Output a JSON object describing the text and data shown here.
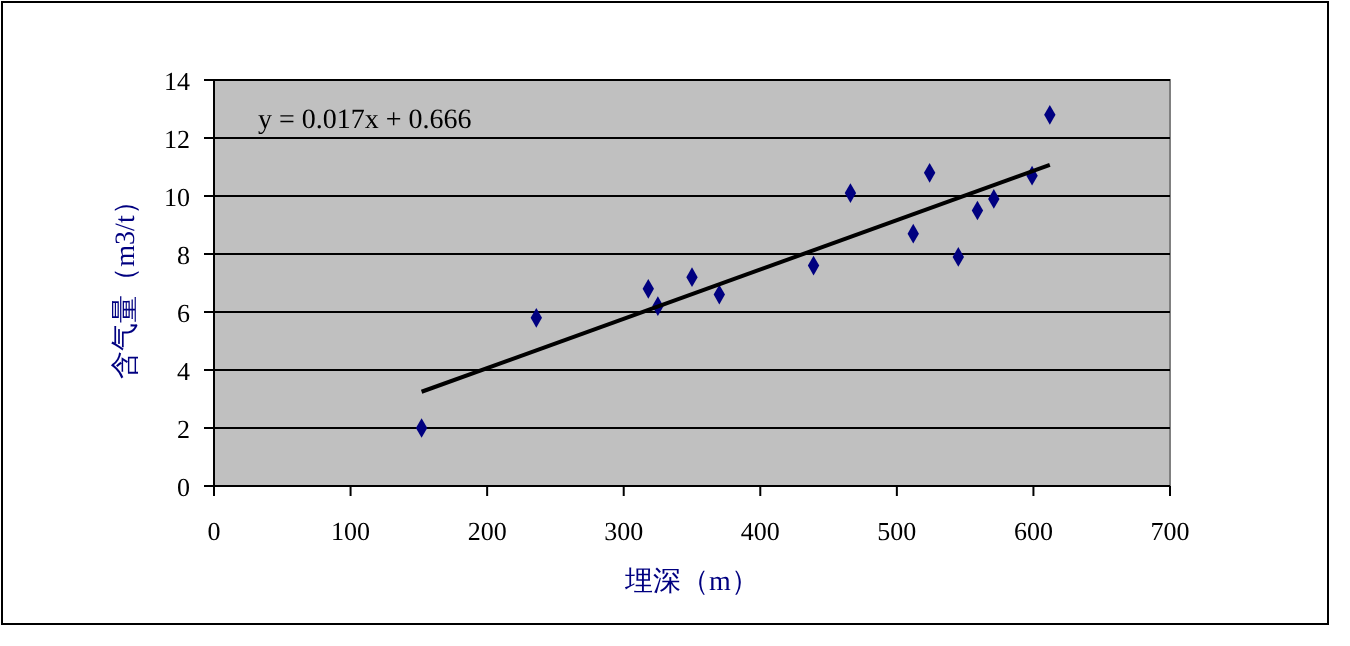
{
  "chart_data": {
    "type": "scatter",
    "xlabel": "埋深（m）",
    "ylabel": "含气量（m3/t）",
    "xlim": [
      0,
      700
    ],
    "xticks": [
      0,
      100,
      200,
      300,
      400,
      500,
      600,
      700
    ],
    "ylim": [
      0,
      14
    ],
    "yticks": [
      0,
      2,
      4,
      6,
      8,
      10,
      12,
      14
    ],
    "grid": "y",
    "marker": "diamond",
    "annotations": [
      "y = 0.017x + 0.666"
    ],
    "series": [
      {
        "color": "#000080",
        "x": [
          152,
          236,
          318,
          325,
          350,
          370,
          439,
          466,
          512,
          524,
          545,
          559,
          571,
          599,
          612
        ],
        "values": [
          2.0,
          5.8,
          6.8,
          6.2,
          7.2,
          6.6,
          7.6,
          10.1,
          8.7,
          10.8,
          7.9,
          9.5,
          9.9,
          10.7,
          12.8
        ]
      },
      {
        "type": "line",
        "color": "#000000",
        "marker": "none",
        "x": [
          152,
          612
        ],
        "values": [
          3.25,
          11.07
        ]
      }
    ]
  }
}
